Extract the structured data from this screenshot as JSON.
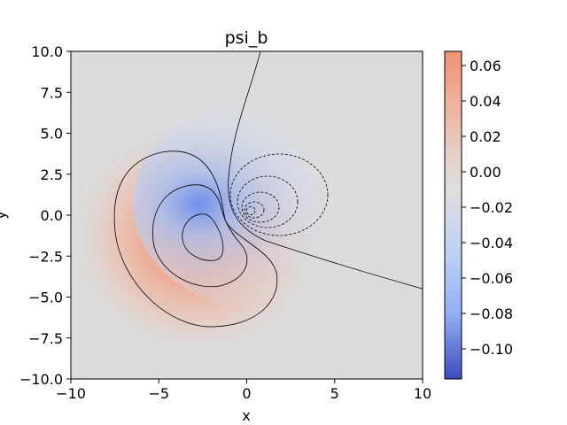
{
  "chart_data": {
    "type": "heatmap",
    "title": "psi_b",
    "xlabel": "x",
    "ylabel": "y",
    "xlim": [
      -10,
      10
    ],
    "ylim": [
      -10,
      10
    ],
    "x_ticks": [
      "−10",
      "−5",
      "0",
      "5",
      "10"
    ],
    "y_ticks": [
      "10.0",
      "7.5",
      "5.0",
      "2.5",
      "0.0",
      "−2.5",
      "−5.0",
      "−7.5",
      "−10.0"
    ],
    "colormap": "coolwarm",
    "value_range": [
      -0.117,
      0.068
    ],
    "colorbar_ticks": [
      "0.06",
      "0.04",
      "0.02",
      "0.00",
      "−0.02",
      "−0.04",
      "−0.06",
      "−0.08",
      "−0.10"
    ],
    "positive_lobe": {
      "center": [
        -2.7,
        -1.3
      ],
      "peak": 0.068
    },
    "negative_lobe": {
      "center": [
        0.2,
        0.2
      ],
      "peak": -0.117
    },
    "contour_levels_positive": [
      0.0,
      0.02,
      0.04,
      0.06
    ],
    "contour_levels_negative": [
      -0.02,
      -0.04,
      -0.06,
      -0.08,
      -0.1
    ],
    "grid": false
  }
}
